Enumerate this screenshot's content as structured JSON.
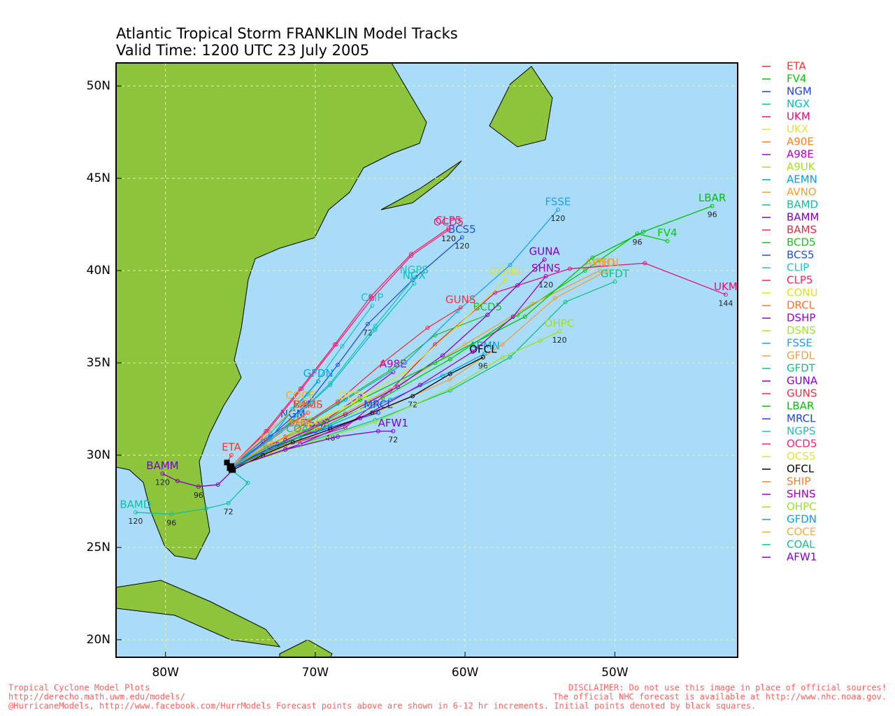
{
  "chart_data": {
    "type": "line",
    "title": "Atlantic Tropical Storm FRANKLIN Model Tracks",
    "subtitle": "Valid Time: 1200 UTC 23 July 2005",
    "xlim": [
      -83.3,
      -41.8
    ],
    "ylim": [
      19.05,
      51.25
    ],
    "xticks": [
      {
        "value": -80,
        "label": "80W"
      },
      {
        "value": -70,
        "label": "70W"
      },
      {
        "value": -60,
        "label": "60W"
      },
      {
        "value": -50,
        "label": "50W"
      }
    ],
    "yticks": [
      {
        "value": 20,
        "label": "20N"
      },
      {
        "value": 25,
        "label": "25N"
      },
      {
        "value": 30,
        "label": "30N"
      },
      {
        "value": 35,
        "label": "35N"
      },
      {
        "value": 40,
        "label": "40N"
      },
      {
        "value": 45,
        "label": "45N"
      },
      {
        "value": 50,
        "label": "50N"
      }
    ],
    "grid": true,
    "series": [
      {
        "name": "ETA",
        "color": "#ff3030",
        "x": [
          -75.9,
          -75.6
        ],
        "y": [
          29.6,
          30.0
        ]
      },
      {
        "name": "FV4",
        "color": "#00cc00",
        "x": [
          -75.6,
          -73,
          -69.5,
          -65.5,
          -61,
          -56.5,
          -52,
          -48.5,
          -46.5
        ],
        "y": [
          29.3,
          30.4,
          31.5,
          33.1,
          35.2,
          37.6,
          40.0,
          42.0,
          41.6
        ],
        "hour_labels": [
          null,
          null,
          null,
          null,
          null,
          null,
          null,
          96,
          null
        ]
      },
      {
        "name": "NGM",
        "color": "#2040e0",
        "x": [
          -75.7,
          -73.5,
          -71.5
        ],
        "y": [
          29.4,
          30.6,
          31.8
        ]
      },
      {
        "name": "NGX",
        "color": "#00c0c0",
        "x": [
          -75.7,
          -72.5,
          -69,
          -66,
          -63.4
        ],
        "y": [
          29.4,
          31.2,
          33.8,
          36.8,
          39.3
        ]
      },
      {
        "name": "UKM",
        "color": "#e0107a",
        "x": [
          -75.6,
          -72,
          -68,
          -65,
          -62,
          -58,
          -53,
          -48,
          -42.6
        ],
        "y": [
          29.3,
          30.5,
          31.5,
          33.5,
          36.0,
          38.8,
          40.1,
          40.4,
          38.7
        ],
        "hour_labels": [
          null,
          null,
          null,
          null,
          null,
          null,
          null,
          null,
          144
        ]
      },
      {
        "name": "UKX",
        "color": "#e0e040",
        "x": [
          -75.7,
          -73,
          -70,
          -67
        ],
        "y": [
          29.3,
          30.5,
          31.5,
          32.5
        ]
      },
      {
        "name": "A90E",
        "color": "#ff8020",
        "x": [
          -75.7,
          -73,
          -70.5
        ],
        "y": [
          29.3,
          30.2,
          31.2
        ]
      },
      {
        "name": "A98E",
        "color": "#b000c0",
        "x": [
          -75.6,
          -72.5,
          -69.5,
          -67,
          -64.8
        ],
        "y": [
          29.3,
          30.6,
          31.8,
          33.2,
          34.5
        ]
      },
      {
        "name": "A9UK",
        "color": "#a0e020",
        "x": [
          -75.7,
          -73.5,
          -71
        ],
        "y": [
          29.3,
          30.4,
          31.4
        ]
      },
      {
        "name": "AEMN",
        "color": "#00a0e0",
        "x": [
          -75.6,
          -72.5,
          -69,
          -65,
          -61.5,
          -58.7
        ],
        "y": [
          29.3,
          30.5,
          31.6,
          33.0,
          34.3,
          35.5
        ]
      },
      {
        "name": "AVNO",
        "color": "#f0a030",
        "x": [
          -75.6,
          -72,
          -68,
          -64,
          -60,
          -55.5,
          -51
        ],
        "y": [
          29.3,
          30.8,
          32.3,
          34.0,
          36.0,
          38.2,
          40.0
        ]
      },
      {
        "name": "BAMD",
        "color": "#10c0a0",
        "x": [
          -75.6,
          -74.5,
          -75.8,
          -77.3,
          -79.6,
          -82
        ],
        "y": [
          29.2,
          28.5,
          27.4,
          27.1,
          26.8,
          26.9
        ],
        "hour_labels": [
          null,
          null,
          72,
          null,
          96,
          120
        ]
      },
      {
        "name": "BAMM",
        "color": "#8000c0",
        "x": [
          -75.5,
          -76.5,
          -77.8,
          -79.2,
          -80.2
        ],
        "y": [
          29.2,
          28.4,
          28.3,
          28.6,
          29.0
        ],
        "hour_labels": [
          null,
          null,
          96,
          null,
          120
        ]
      },
      {
        "name": "BAMS",
        "color": "#e03040",
        "x": [
          -75.6,
          -73.5,
          -70.5
        ],
        "y": [
          29.4,
          30.8,
          32.3
        ]
      },
      {
        "name": "BCD5",
        "color": "#20c020",
        "x": [
          -75.6,
          -72,
          -68.5,
          -65,
          -62,
          -58.5
        ],
        "y": [
          29.3,
          31.0,
          32.8,
          34.6,
          36.5,
          37.6
        ]
      },
      {
        "name": "BCS5",
        "color": "#2050e0",
        "x": [
          -75.6,
          -73,
          -70.5,
          -68.5,
          -66.5,
          -63.5,
          -60.2
        ],
        "y": [
          29.3,
          31.0,
          32.8,
          34.9,
          37.1,
          39.5,
          41.8
        ],
        "hour_labels": [
          null,
          null,
          null,
          null,
          72,
          null,
          120
        ]
      },
      {
        "name": "CLIP",
        "color": "#20c0d0",
        "x": [
          -75.6,
          -73,
          -70.5,
          -68.2,
          -66.2
        ],
        "y": [
          29.4,
          31.2,
          33.3,
          35.9,
          38.1
        ]
      },
      {
        "name": "CLP5",
        "color": "#ff2060",
        "x": [
          -75.6,
          -73.3,
          -71,
          -68.7,
          -66.3,
          -63.6,
          -61.1
        ],
        "y": [
          29.4,
          31.3,
          33.6,
          36.0,
          38.6,
          40.9,
          42.3
        ]
      },
      {
        "name": "CONU",
        "color": "#e0e020",
        "x": [
          -75.6,
          -72,
          -68,
          -64,
          -60.5,
          -57.3
        ],
        "y": [
          29.3,
          30.9,
          32.6,
          34.5,
          37.0,
          39.5
        ]
      },
      {
        "name": "DRCL",
        "color": "#ff7030",
        "x": [
          -75.7,
          -73,
          -70.5
        ],
        "y": [
          29.3,
          30.8,
          32.3
        ]
      },
      {
        "name": "DSHP",
        "color": "#a000d0",
        "x": [
          -75.7,
          -73,
          -70
        ],
        "y": [
          29.3,
          30.4,
          31.3
        ]
      },
      {
        "name": "DSNS",
        "color": "#a0e040",
        "x": [
          -75.7,
          -73,
          -70
        ],
        "y": [
          29.3,
          30.5,
          31.4
        ]
      },
      {
        "name": "FSSE",
        "color": "#20a0f0",
        "x": [
          -75.6,
          -72,
          -68,
          -64,
          -60.5,
          -57,
          -53.8
        ],
        "y": [
          29.3,
          31.0,
          33.0,
          35.0,
          37.8,
          40.3,
          43.3
        ],
        "hour_labels": [
          null,
          null,
          null,
          null,
          null,
          null,
          120
        ]
      },
      {
        "name": "GFDL",
        "color": "#f0a040",
        "x": [
          -75.6,
          -71,
          -66,
          -61,
          -57.5,
          -54,
          -50.5
        ],
        "y": [
          29.3,
          30.8,
          32.3,
          34.1,
          36.0,
          38.5,
          40.0
        ]
      },
      {
        "name": "GFDT",
        "color": "#10c080",
        "x": [
          -75.6,
          -71,
          -66,
          -61,
          -57,
          -53.3,
          -50
        ],
        "y": [
          29.3,
          30.6,
          31.9,
          33.5,
          35.3,
          38.3,
          39.4
        ]
      },
      {
        "name": "GUNA",
        "color": "#8000d0",
        "x": [
          -75.6,
          -72,
          -68,
          -64.5,
          -61.5,
          -58.5,
          -56.5,
          -54.7
        ],
        "y": [
          29.3,
          30.8,
          32.2,
          33.7,
          35.4,
          37.6,
          39.2,
          40.6
        ]
      },
      {
        "name": "GUNS",
        "color": "#f03040",
        "x": [
          -75.6,
          -72,
          -68.5,
          -65.5,
          -62.5,
          -60.3
        ],
        "y": [
          29.3,
          31.0,
          32.9,
          35.0,
          36.9,
          38.0
        ]
      },
      {
        "name": "LBAR",
        "color": "#00c000",
        "x": [
          -75.6,
          -71,
          -67,
          -62,
          -56,
          -51.5,
          -48.1,
          -43.5
        ],
        "y": [
          29.3,
          31.0,
          33.0,
          35.0,
          37.5,
          40.7,
          42.1,
          43.5
        ],
        "hour_labels": [
          null,
          null,
          null,
          null,
          null,
          null,
          null,
          96
        ]
      },
      {
        "name": "MRCL",
        "color": "#2040f0",
        "x": [
          -75.6,
          -72.5,
          -69,
          -65.8
        ],
        "y": [
          29.3,
          30.6,
          31.5,
          32.3
        ]
      },
      {
        "name": "NGPS",
        "color": "#20c0c0",
        "x": [
          -75.6,
          -72.3,
          -69,
          -66,
          -63.4
        ],
        "y": [
          29.3,
          31.3,
          33.9,
          37.0,
          39.6
        ]
      },
      {
        "name": "OCD5",
        "color": "#f02080",
        "x": [
          -75.6,
          -73.2,
          -70.9,
          -68.6,
          -66.2,
          -63.6,
          -61.1
        ],
        "y": [
          29.4,
          31.3,
          33.6,
          36.0,
          38.5,
          40.8,
          42.2
        ],
        "hour_labels": [
          null,
          null,
          null,
          null,
          null,
          null,
          120
        ]
      },
      {
        "name": "OCS5",
        "color": "#e0e040",
        "x": [
          -75.7,
          -73,
          -70.5,
          -67.5
        ],
        "y": [
          29.3,
          30.6,
          31.7,
          32.8
        ]
      },
      {
        "name": "OFCL",
        "color": "#000000",
        "x": [
          -75.5,
          -73.5,
          -71.5,
          -69,
          -66.2,
          -63.5,
          -61,
          -58.8
        ],
        "y": [
          29.2,
          30.0,
          30.7,
          31.4,
          32.3,
          33.2,
          34.4,
          35.3
        ],
        "hour_labels": [
          null,
          null,
          null,
          48,
          null,
          72,
          null,
          96
        ]
      },
      {
        "name": "SHIP",
        "color": "#f08030",
        "x": [
          -75.7,
          -73.3,
          -71
        ],
        "y": [
          29.3,
          30.5,
          31.3
        ]
      },
      {
        "name": "SHNS",
        "color": "#a000c0",
        "x": [
          -75.6,
          -71,
          -67,
          -63,
          -59.5,
          -56.8,
          -54.6
        ],
        "y": [
          29.3,
          30.6,
          32.0,
          33.8,
          35.6,
          37.5,
          39.7
        ],
        "hour_labels": [
          null,
          null,
          null,
          null,
          null,
          null,
          120
        ]
      },
      {
        "name": "OHPC",
        "color": "#a0e020",
        "x": [
          -75.6,
          -71,
          -66,
          -61,
          -57.5,
          -55,
          -53.7
        ],
        "y": [
          29.3,
          30.5,
          31.8,
          33.6,
          35.3,
          36.2,
          36.7
        ],
        "hour_labels": [
          null,
          null,
          null,
          null,
          null,
          null,
          120
        ]
      },
      {
        "name": "GFDN",
        "color": "#00a0f0",
        "x": [
          -75.6,
          -73,
          -71.5,
          -69.8
        ],
        "y": [
          29.3,
          30.9,
          32.5,
          34.0
        ]
      },
      {
        "name": "COCE",
        "color": "#f0b030",
        "x": [
          -75.6,
          -73.5,
          -71
        ],
        "y": [
          29.4,
          31.0,
          32.8
        ]
      },
      {
        "name": "COAL",
        "color": "#10c090",
        "x": [
          -75.6,
          -73.3,
          -71
        ],
        "y": [
          29.3,
          30.4,
          31.0
        ]
      },
      {
        "name": "AFW1",
        "color": "#8000d0",
        "x": [
          -75.6,
          -72,
          -68.5,
          -65.8,
          -64.8
        ],
        "y": [
          29.3,
          30.3,
          31.0,
          31.3,
          31.3
        ],
        "hour_labels": [
          null,
          null,
          null,
          null,
          72
        ]
      }
    ],
    "footer_left": [
      "Tropical Cyclone Model Plots",
      "http://derecho.math.uwm.edu/models/",
      "@HurricaneModels, http://www.facebook.com/HurrModels  Forecast points above are shown in 6-12 hr increments. Initial points denoted by black squares."
    ],
    "footer_right": [
      "DISCLAIMER: Do not use this image in place of official sources!",
      "The official NHC forecast is available at http://www.nhc.noaa.gov."
    ]
  }
}
